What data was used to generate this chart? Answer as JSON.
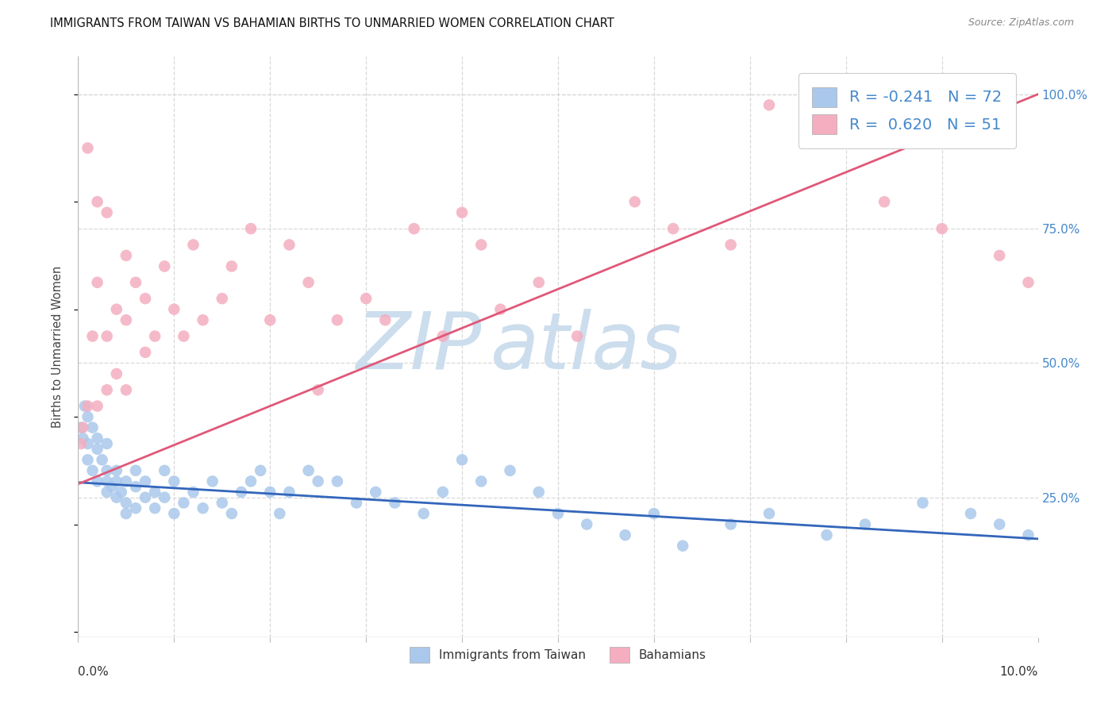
{
  "title": "IMMIGRANTS FROM TAIWAN VS BAHAMIAN BIRTHS TO UNMARRIED WOMEN CORRELATION CHART",
  "source": "Source: ZipAtlas.com",
  "ylabel": "Births to Unmarried Women",
  "r_taiwan": -0.241,
  "n_taiwan": 72,
  "r_bahamian": 0.62,
  "n_bahamian": 51,
  "taiwan_dot_color": "#aac8ec",
  "bahamian_dot_color": "#f4aec0",
  "taiwan_line_color": "#3366bb",
  "bahamian_line_color": "#e05878",
  "right_tick_color": "#4488cc",
  "background_color": "#ffffff",
  "grid_color": "#d8d8d8",
  "watermark_zip_color": "#ccdded",
  "watermark_atlas_color": "#ccdded",
  "xmin": 0.0,
  "xmax": 0.1,
  "ymin": -0.01,
  "ymax": 1.07,
  "ytick_vals": [
    0.25,
    0.5,
    0.75,
    1.0
  ],
  "ytick_labels": [
    "25.0%",
    "50.0%",
    "75.0%",
    "100.0%"
  ],
  "xtick_vals": [
    0.0,
    0.01,
    0.02,
    0.03,
    0.04,
    0.05,
    0.06,
    0.07,
    0.08,
    0.09,
    0.1
  ],
  "taiwan_x": [
    0.0003,
    0.0005,
    0.0007,
    0.001,
    0.001,
    0.001,
    0.0015,
    0.0015,
    0.002,
    0.002,
    0.002,
    0.0025,
    0.003,
    0.003,
    0.003,
    0.003,
    0.0035,
    0.004,
    0.004,
    0.004,
    0.0045,
    0.005,
    0.005,
    0.005,
    0.006,
    0.006,
    0.006,
    0.007,
    0.007,
    0.008,
    0.008,
    0.009,
    0.009,
    0.01,
    0.01,
    0.011,
    0.012,
    0.013,
    0.014,
    0.015,
    0.016,
    0.017,
    0.018,
    0.019,
    0.02,
    0.021,
    0.022,
    0.024,
    0.025,
    0.027,
    0.029,
    0.031,
    0.033,
    0.036,
    0.038,
    0.04,
    0.042,
    0.045,
    0.048,
    0.05,
    0.053,
    0.057,
    0.06,
    0.063,
    0.068,
    0.072,
    0.078,
    0.082,
    0.088,
    0.093,
    0.096,
    0.099
  ],
  "taiwan_y": [
    0.38,
    0.36,
    0.42,
    0.4,
    0.35,
    0.32,
    0.38,
    0.3,
    0.36,
    0.28,
    0.34,
    0.32,
    0.3,
    0.28,
    0.26,
    0.35,
    0.27,
    0.28,
    0.25,
    0.3,
    0.26,
    0.24,
    0.28,
    0.22,
    0.3,
    0.27,
    0.23,
    0.28,
    0.25,
    0.26,
    0.23,
    0.3,
    0.25,
    0.28,
    0.22,
    0.24,
    0.26,
    0.23,
    0.28,
    0.24,
    0.22,
    0.26,
    0.28,
    0.3,
    0.26,
    0.22,
    0.26,
    0.3,
    0.28,
    0.28,
    0.24,
    0.26,
    0.24,
    0.22,
    0.26,
    0.32,
    0.28,
    0.3,
    0.26,
    0.22,
    0.2,
    0.18,
    0.22,
    0.16,
    0.2,
    0.22,
    0.18,
    0.2,
    0.24,
    0.22,
    0.2,
    0.18
  ],
  "bahamian_x": [
    0.0003,
    0.0005,
    0.001,
    0.001,
    0.0015,
    0.002,
    0.002,
    0.002,
    0.003,
    0.003,
    0.003,
    0.004,
    0.004,
    0.005,
    0.005,
    0.005,
    0.006,
    0.007,
    0.007,
    0.008,
    0.009,
    0.01,
    0.011,
    0.012,
    0.013,
    0.015,
    0.016,
    0.018,
    0.02,
    0.022,
    0.024,
    0.025,
    0.027,
    0.03,
    0.032,
    0.035,
    0.038,
    0.04,
    0.042,
    0.044,
    0.048,
    0.052,
    0.058,
    0.062,
    0.068,
    0.072,
    0.078,
    0.084,
    0.09,
    0.096,
    0.099
  ],
  "bahamian_y": [
    0.35,
    0.38,
    0.9,
    0.42,
    0.55,
    0.8,
    0.65,
    0.42,
    0.78,
    0.55,
    0.45,
    0.6,
    0.48,
    0.7,
    0.58,
    0.45,
    0.65,
    0.62,
    0.52,
    0.55,
    0.68,
    0.6,
    0.55,
    0.72,
    0.58,
    0.62,
    0.68,
    0.75,
    0.58,
    0.72,
    0.65,
    0.45,
    0.58,
    0.62,
    0.58,
    0.75,
    0.55,
    0.78,
    0.72,
    0.6,
    0.65,
    0.55,
    0.8,
    0.75,
    0.72,
    0.98,
    1.0,
    0.8,
    0.75,
    0.7,
    0.65
  ]
}
